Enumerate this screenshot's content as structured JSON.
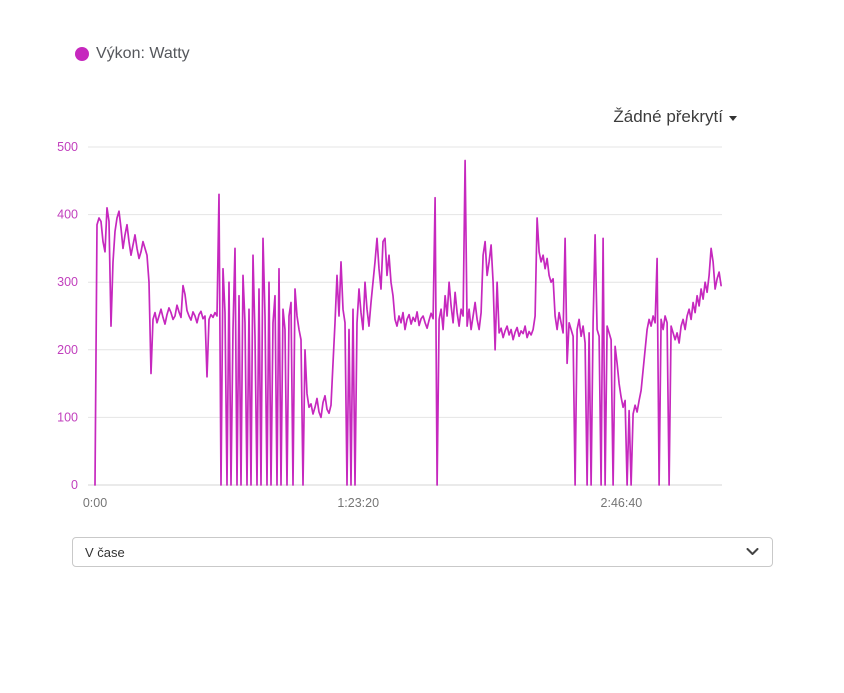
{
  "page": {
    "background": "#ffffff"
  },
  "legend": {
    "series_label": "Výkon: Watty",
    "dot_color": "#c628be"
  },
  "overlay_dropdown": {
    "label": "Žádné překrytí",
    "caret": "▾"
  },
  "axis_mode_select": {
    "value": "V čase"
  },
  "chart_data": {
    "type": "line",
    "series_name": "Výkon: Watty",
    "unit": "W",
    "line_color": "#c628be",
    "grid": "horizontal",
    "grid_color": "#e4e4e4",
    "axis_line_color": "#d6d6d6",
    "ylim": [
      0,
      500
    ],
    "y_ticks": [
      0,
      100,
      200,
      300,
      400,
      500
    ],
    "y_tick_color": "#c13fbd",
    "x_ticks": [
      {
        "label": "0:00",
        "seconds": 0
      },
      {
        "label": "1:23:20",
        "seconds": 5000
      },
      {
        "label": "2:46:40",
        "seconds": 10000
      }
    ],
    "x_tick_color": "#757575",
    "xlim_seconds": [
      0,
      11894
    ],
    "legend_position": "top-left",
    "sample_interval_seconds": 38,
    "values": [
      0,
      385,
      395,
      390,
      360,
      345,
      410,
      390,
      235,
      330,
      375,
      395,
      405,
      380,
      350,
      370,
      385,
      360,
      340,
      355,
      370,
      350,
      335,
      345,
      360,
      350,
      340,
      300,
      165,
      245,
      255,
      240,
      250,
      260,
      248,
      238,
      252,
      262,
      255,
      245,
      250,
      266,
      256,
      248,
      295,
      282,
      258,
      250,
      244,
      256,
      250,
      240,
      252,
      257,
      246,
      250,
      160,
      245,
      252,
      248,
      255,
      250,
      430,
      0,
      320,
      255,
      0,
      300,
      0,
      230,
      350,
      0,
      280,
      0,
      310,
      240,
      0,
      260,
      0,
      340,
      220,
      0,
      290,
      0,
      365,
      250,
      0,
      300,
      0,
      240,
      280,
      0,
      320,
      0,
      260,
      230,
      0,
      250,
      270,
      0,
      290,
      250,
      230,
      215,
      0,
      200,
      135,
      115,
      120,
      105,
      115,
      128,
      108,
      100,
      122,
      132,
      112,
      106,
      118,
      180,
      240,
      310,
      250,
      330,
      260,
      240,
      0,
      230,
      0,
      260,
      0,
      240,
      290,
      255,
      230,
      300,
      260,
      235,
      270,
      300,
      330,
      365,
      320,
      290,
      360,
      365,
      310,
      340,
      300,
      280,
      245,
      235,
      250,
      240,
      255,
      230,
      245,
      252,
      238,
      248,
      242,
      256,
      236,
      246,
      250,
      240,
      232,
      244,
      254,
      246,
      425,
      0,
      245,
      260,
      230,
      280,
      250,
      300,
      265,
      240,
      285,
      255,
      235,
      260,
      250,
      480,
      235,
      260,
      230,
      250,
      270,
      245,
      230,
      255,
      340,
      360,
      310,
      330,
      355,
      300,
      200,
      300,
      225,
      232,
      218,
      228,
      235,
      222,
      230,
      215,
      226,
      233,
      220,
      228,
      224,
      235,
      218,
      227,
      222,
      230,
      250,
      395,
      345,
      330,
      340,
      320,
      335,
      310,
      300,
      305,
      250,
      230,
      255,
      240,
      225,
      365,
      180,
      240,
      230,
      220,
      0,
      230,
      245,
      220,
      235,
      210,
      0,
      225,
      0,
      240,
      370,
      230,
      220,
      0,
      365,
      0,
      235,
      225,
      215,
      0,
      205,
      180,
      150,
      130,
      115,
      125,
      0,
      110,
      0,
      105,
      118,
      108,
      125,
      140,
      170,
      200,
      230,
      245,
      235,
      250,
      240,
      335,
      0,
      245,
      230,
      250,
      240,
      0,
      235,
      225,
      215,
      225,
      210,
      235,
      245,
      230,
      250,
      260,
      245,
      270,
      255,
      280,
      265,
      290,
      275,
      300,
      285,
      310,
      350,
      330,
      290,
      305,
      315,
      295
    ]
  }
}
